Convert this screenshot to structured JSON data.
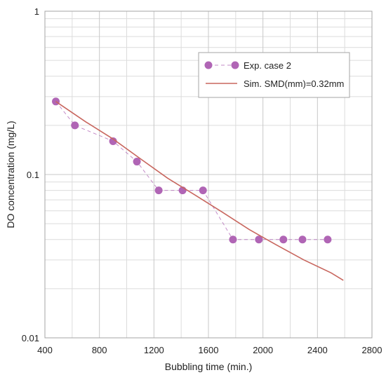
{
  "chart_data": {
    "type": "scatter",
    "xlabel": "Bubbling time (min.)",
    "ylabel": "DO concentration (mg/L)",
    "xlim": [
      400,
      2800
    ],
    "ylim": [
      0.01,
      1
    ],
    "y_scale": "log",
    "x_ticks": [
      400,
      800,
      1200,
      1600,
      2000,
      2400,
      2800
    ],
    "x_tick_labels": [
      "400",
      "800",
      "1200",
      "1600",
      "2000",
      "2400",
      "2800"
    ],
    "y_ticks": [
      0.01,
      0.1,
      1
    ],
    "y_tick_labels": [
      "0.01",
      "0.1",
      "1"
    ],
    "grid": true,
    "legend_position": "top-right",
    "series": [
      {
        "name": "Exp. case 2",
        "kind": "markers-dashed",
        "color": "#b065b5",
        "x": [
          480,
          620,
          900,
          1075,
          1235,
          1410,
          1560,
          1780,
          1970,
          2150,
          2290,
          2475
        ],
        "y": [
          0.28,
          0.2,
          0.16,
          0.12,
          0.08,
          0.08,
          0.08,
          0.04,
          0.04,
          0.04,
          0.04,
          0.04
        ]
      },
      {
        "name": "Sim. SMD(mm)=0.32mm",
        "kind": "line",
        "color": "#c8665e",
        "x": [
          480,
          700,
          900,
          1100,
          1300,
          1500,
          1700,
          1900,
          2100,
          2300,
          2500,
          2590
        ],
        "y": [
          0.28,
          0.21,
          0.165,
          0.125,
          0.095,
          0.075,
          0.059,
          0.046,
          0.037,
          0.03,
          0.025,
          0.0225
        ]
      }
    ]
  }
}
